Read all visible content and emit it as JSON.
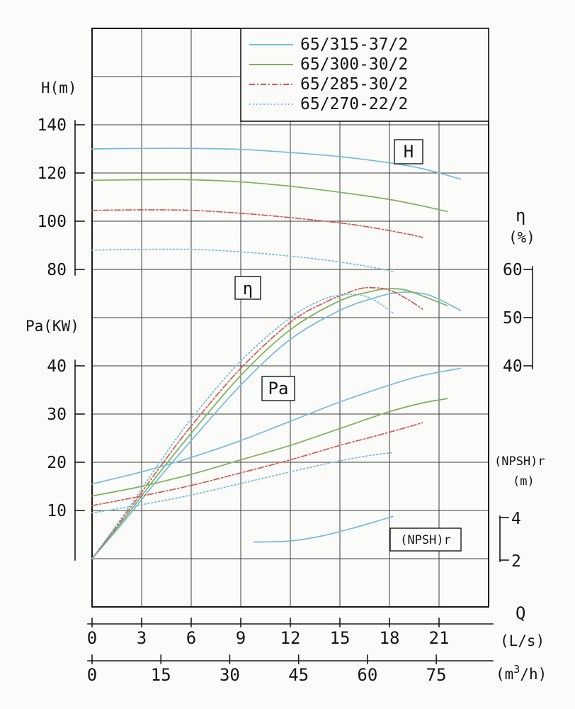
{
  "colors": {
    "blue": "#74bcd8",
    "green": "#7cb25a",
    "red": "#cf5b56",
    "grid": "#3d3d3d",
    "frame": "#1a1a1a",
    "text": "#141414",
    "background": "#fbfbf9"
  },
  "legend": {
    "items": [
      {
        "label": "65/315-37/2",
        "color": "#74bcd8",
        "dash": "solid"
      },
      {
        "label": "65/300-30/2",
        "color": "#7cb25a",
        "dash": "solid"
      },
      {
        "label": "65/285-30/2",
        "color": "#cf5b56",
        "dash": "dashdot"
      },
      {
        "label": "65/270-22/2",
        "color": "#74bcd8",
        "dash": "dotted"
      }
    ]
  },
  "axis_labels": {
    "h": "H(m)",
    "pa": "Pa(KW)",
    "eta_symbol": "η",
    "eta_unit": "(%)",
    "npsh": "(NPSH)r",
    "npsh_unit": "(m)",
    "q": "Q",
    "q_unit_ls": "(L/s)",
    "m3h_prefix": "(m",
    "m3h_sup": "3",
    "m3h_suffix": "/h)"
  },
  "curve_boxes": {
    "h": "H",
    "eta": "η",
    "pa": "Pa",
    "npsh": "(NPSH)r"
  },
  "chart_data": {
    "type": "line",
    "title": "Centrifugal pump performance curves (H, η, Pa, NPSHr vs Q)",
    "xlabel": "Q",
    "x_units": [
      "L/s",
      "m3/h"
    ],
    "x_ticks_ls": [
      0,
      3,
      6,
      9,
      12,
      15,
      18,
      21
    ],
    "x_ticks_m3h": [
      0,
      15,
      30,
      45,
      60,
      75
    ],
    "x_range_ls": [
      0,
      24
    ],
    "grid": true,
    "legend_position": "top-right",
    "y_axes": {
      "H": {
        "label": "H(m)",
        "ticks": [
          140,
          120,
          100,
          80
        ]
      },
      "Pa": {
        "label": "Pa(KW)",
        "ticks": [
          40,
          30,
          20,
          10
        ]
      },
      "eta": {
        "label": "η(%)",
        "ticks": [
          60,
          50,
          40
        ]
      },
      "NPSH": {
        "label": "(NPSH)r (m)",
        "ticks": [
          4,
          2
        ]
      }
    },
    "series": [
      {
        "model": "65/315-37/2",
        "axis": "H",
        "color": "#74bcd8",
        "dash": "solid",
        "points": [
          [
            0,
            130
          ],
          [
            3,
            130.2
          ],
          [
            6,
            130.2
          ],
          [
            9,
            129.8
          ],
          [
            12,
            128.5
          ],
          [
            15,
            126.8
          ],
          [
            18,
            124.2
          ],
          [
            20,
            121.8
          ],
          [
            22.3,
            117.5
          ]
        ]
      },
      {
        "model": "65/300-30/2",
        "axis": "H",
        "color": "#7cb25a",
        "dash": "solid",
        "points": [
          [
            0,
            117
          ],
          [
            3,
            117.2
          ],
          [
            6,
            117.2
          ],
          [
            9,
            116.3
          ],
          [
            12,
            114.5
          ],
          [
            15,
            112
          ],
          [
            18,
            109
          ],
          [
            20,
            106.3
          ],
          [
            21.5,
            104
          ]
        ]
      },
      {
        "model": "65/285-30/2",
        "axis": "H",
        "color": "#cf5b56",
        "dash": "dashdot",
        "points": [
          [
            0,
            104.5
          ],
          [
            3,
            104.7
          ],
          [
            6,
            104.5
          ],
          [
            9,
            103.3
          ],
          [
            12,
            101.5
          ],
          [
            15,
            99.3
          ],
          [
            17,
            97.3
          ],
          [
            19,
            94.8
          ],
          [
            20,
            93.3
          ]
        ]
      },
      {
        "model": "65/270-22/2",
        "axis": "H",
        "color": "#74bcd8",
        "dash": "dotted",
        "points": [
          [
            0,
            88
          ],
          [
            3,
            88.3
          ],
          [
            6,
            88.3
          ],
          [
            9,
            87.3
          ],
          [
            12,
            85.5
          ],
          [
            14,
            84
          ],
          [
            16,
            82
          ],
          [
            17.5,
            80.2
          ],
          [
            18.2,
            79
          ]
        ]
      },
      {
        "model": "65/315-37/2",
        "axis": "eta",
        "color": "#74bcd8",
        "dash": "solid",
        "points": [
          [
            0,
            0
          ],
          [
            2,
            8
          ],
          [
            4,
            16.5
          ],
          [
            6,
            24.5
          ],
          [
            9,
            36
          ],
          [
            12,
            45.5
          ],
          [
            15,
            51.5
          ],
          [
            17,
            54
          ],
          [
            18.5,
            55.2
          ],
          [
            20,
            55
          ],
          [
            21,
            53.8
          ],
          [
            22.3,
            51.5
          ]
        ]
      },
      {
        "model": "65/300-30/2",
        "axis": "eta",
        "color": "#7cb25a",
        "dash": "solid",
        "points": [
          [
            0,
            0
          ],
          [
            2,
            8.5
          ],
          [
            4,
            17.5
          ],
          [
            6,
            26
          ],
          [
            9,
            38
          ],
          [
            12,
            47.5
          ],
          [
            15,
            53.5
          ],
          [
            17,
            55.5
          ],
          [
            18,
            56
          ],
          [
            19,
            55.7
          ],
          [
            20,
            54.5
          ],
          [
            21.5,
            52.5
          ]
        ]
      },
      {
        "model": "65/285-30/2",
        "axis": "eta",
        "color": "#cf5b56",
        "dash": "dashdot",
        "points": [
          [
            0,
            0
          ],
          [
            2,
            9
          ],
          [
            4,
            18.5
          ],
          [
            6,
            27.5
          ],
          [
            9,
            39.5
          ],
          [
            12,
            49
          ],
          [
            14,
            53
          ],
          [
            16,
            55.8
          ],
          [
            17,
            56.2
          ],
          [
            18,
            55.7
          ],
          [
            19,
            54
          ],
          [
            20,
            51.8
          ]
        ]
      },
      {
        "model": "65/270-22/2",
        "axis": "eta",
        "color": "#74bcd8",
        "dash": "dotted",
        "points": [
          [
            0,
            0
          ],
          [
            2,
            9.5
          ],
          [
            4,
            19.5
          ],
          [
            6,
            29
          ],
          [
            9,
            41
          ],
          [
            12,
            50
          ],
          [
            14,
            53.8
          ],
          [
            15,
            54.6
          ],
          [
            16,
            54.8
          ],
          [
            17,
            53.8
          ],
          [
            18.2,
            51
          ]
        ]
      },
      {
        "model": "65/315-37/2",
        "axis": "Pa",
        "color": "#74bcd8",
        "dash": "solid",
        "points": [
          [
            0,
            15.5
          ],
          [
            3,
            18
          ],
          [
            6,
            21
          ],
          [
            9,
            24.5
          ],
          [
            12,
            28.5
          ],
          [
            15,
            32.5
          ],
          [
            18,
            36
          ],
          [
            20,
            38
          ],
          [
            22.3,
            39.5
          ]
        ]
      },
      {
        "model": "65/300-30/2",
        "axis": "Pa",
        "color": "#7cb25a",
        "dash": "solid",
        "points": [
          [
            0,
            13
          ],
          [
            3,
            15
          ],
          [
            6,
            17.5
          ],
          [
            9,
            20.5
          ],
          [
            12,
            23.5
          ],
          [
            15,
            27
          ],
          [
            18,
            30.5
          ],
          [
            20,
            32.3
          ],
          [
            21.5,
            33.2
          ]
        ]
      },
      {
        "model": "65/285-30/2",
        "axis": "Pa",
        "color": "#cf5b56",
        "dash": "dashdot",
        "points": [
          [
            0,
            11
          ],
          [
            3,
            13
          ],
          [
            6,
            15.2
          ],
          [
            9,
            17.8
          ],
          [
            12,
            20.5
          ],
          [
            15,
            23.5
          ],
          [
            17,
            25.3
          ],
          [
            19,
            27.2
          ],
          [
            20,
            28.2
          ]
        ]
      },
      {
        "model": "65/270-22/2",
        "axis": "Pa",
        "color": "#74bcd8",
        "dash": "dotted",
        "points": [
          [
            0,
            9.5
          ],
          [
            3,
            11.2
          ],
          [
            6,
            13.2
          ],
          [
            9,
            15.6
          ],
          [
            12,
            18
          ],
          [
            15,
            20.3
          ],
          [
            17,
            21.5
          ],
          [
            18.2,
            22
          ]
        ]
      },
      {
        "model": "65/315-37/2",
        "axis": "NPSH",
        "color": "#74bcd8",
        "dash": "solid",
        "points": [
          [
            9.8,
            2.85
          ],
          [
            12,
            2.9
          ],
          [
            14,
            3.15
          ],
          [
            16,
            3.55
          ],
          [
            18.2,
            4.05
          ]
        ]
      }
    ]
  }
}
